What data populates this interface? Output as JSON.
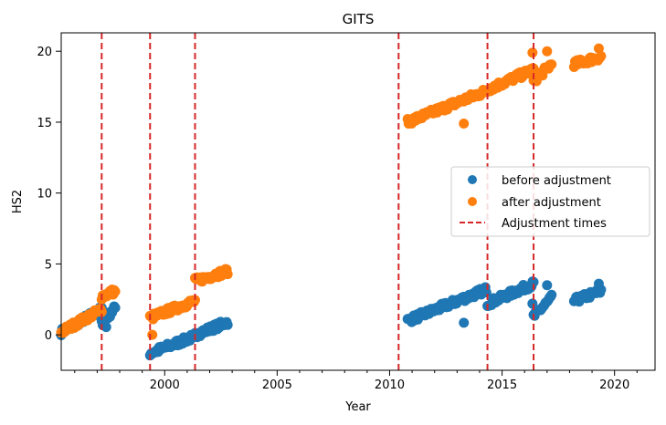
{
  "chart_data": {
    "type": "scatter",
    "title": "GITS",
    "xlabel": "Year",
    "ylabel": "HS2",
    "xlim": [
      1995.4,
      2021.8
    ],
    "ylim": [
      -2.5,
      21.3
    ],
    "xticks": [
      2000,
      2005,
      2010,
      2015,
      2020
    ],
    "yticks": [
      0,
      5,
      10,
      15,
      20
    ],
    "grid": false,
    "legend_position": "right",
    "legend": [
      "before adjustment",
      "after adjustment",
      "Adjustment times"
    ],
    "colors": {
      "before": "#1f77b4",
      "after": "#ff7f0e",
      "adjustment": "#d62728"
    },
    "adjustment_times": [
      1997.2,
      1999.35,
      2001.35,
      2010.4,
      2014.35,
      2016.4
    ],
    "series": [
      {
        "name": "before adjustment",
        "segments": [
          {
            "x": [
              1995.4,
              1997.2
            ],
            "y": [
              0.2,
              1.8
            ]
          },
          {
            "x": [
              1997.2,
              1997.8
            ],
            "y": [
              0.8,
              1.9
            ]
          },
          {
            "x": [
              1999.35,
              2001.35
            ],
            "y": [
              -1.3,
              -0.1
            ]
          },
          {
            "x": [
              2001.35,
              2002.8
            ],
            "y": [
              0.0,
              0.9
            ]
          },
          {
            "x": [
              2010.8,
              2014.3
            ],
            "y": [
              1.0,
              3.2
            ]
          },
          {
            "x": [
              2014.35,
              2016.4
            ],
            "y": [
              2.2,
              3.6
            ]
          },
          {
            "x": [
              2016.4,
              2017.2
            ],
            "y": [
              1.3,
              2.6
            ]
          },
          {
            "x": [
              2018.2,
              2019.4
            ],
            "y": [
              2.4,
              3.1
            ]
          }
        ],
        "outliers": [
          {
            "x": 1997.4,
            "y": 0.55
          },
          {
            "x": 2013.3,
            "y": 0.85
          },
          {
            "x": 2016.35,
            "y": 2.2
          },
          {
            "x": 2017.0,
            "y": 3.5
          },
          {
            "x": 2019.3,
            "y": 3.6
          }
        ]
      },
      {
        "name": "after adjustment",
        "segments": [
          {
            "x": [
              1995.4,
              1997.2
            ],
            "y": [
              0.2,
              1.8
            ]
          },
          {
            "x": [
              1997.2,
              1997.8
            ],
            "y": [
              2.7,
              3.1
            ]
          },
          {
            "x": [
              1999.35,
              2001.35
            ],
            "y": [
              1.2,
              2.4
            ]
          },
          {
            "x": [
              2001.35,
              2002.8
            ],
            "y": [
              3.8,
              4.5
            ]
          },
          {
            "x": [
              2010.8,
              2014.3
            ],
            "y": [
              15.0,
              17.2
            ]
          },
          {
            "x": [
              2014.35,
              2016.4
            ],
            "y": [
              17.3,
              18.7
            ]
          },
          {
            "x": [
              2016.4,
              2017.2
            ],
            "y": [
              17.9,
              19.1
            ]
          },
          {
            "x": [
              2018.2,
              2019.4
            ],
            "y": [
              19.1,
              19.6
            ]
          }
        ],
        "outliers": [
          {
            "x": 1999.45,
            "y": 0.0
          },
          {
            "x": 2013.3,
            "y": 14.9
          },
          {
            "x": 2016.35,
            "y": 19.9
          },
          {
            "x": 2017.0,
            "y": 20.0
          },
          {
            "x": 2019.3,
            "y": 20.2
          }
        ]
      }
    ]
  }
}
